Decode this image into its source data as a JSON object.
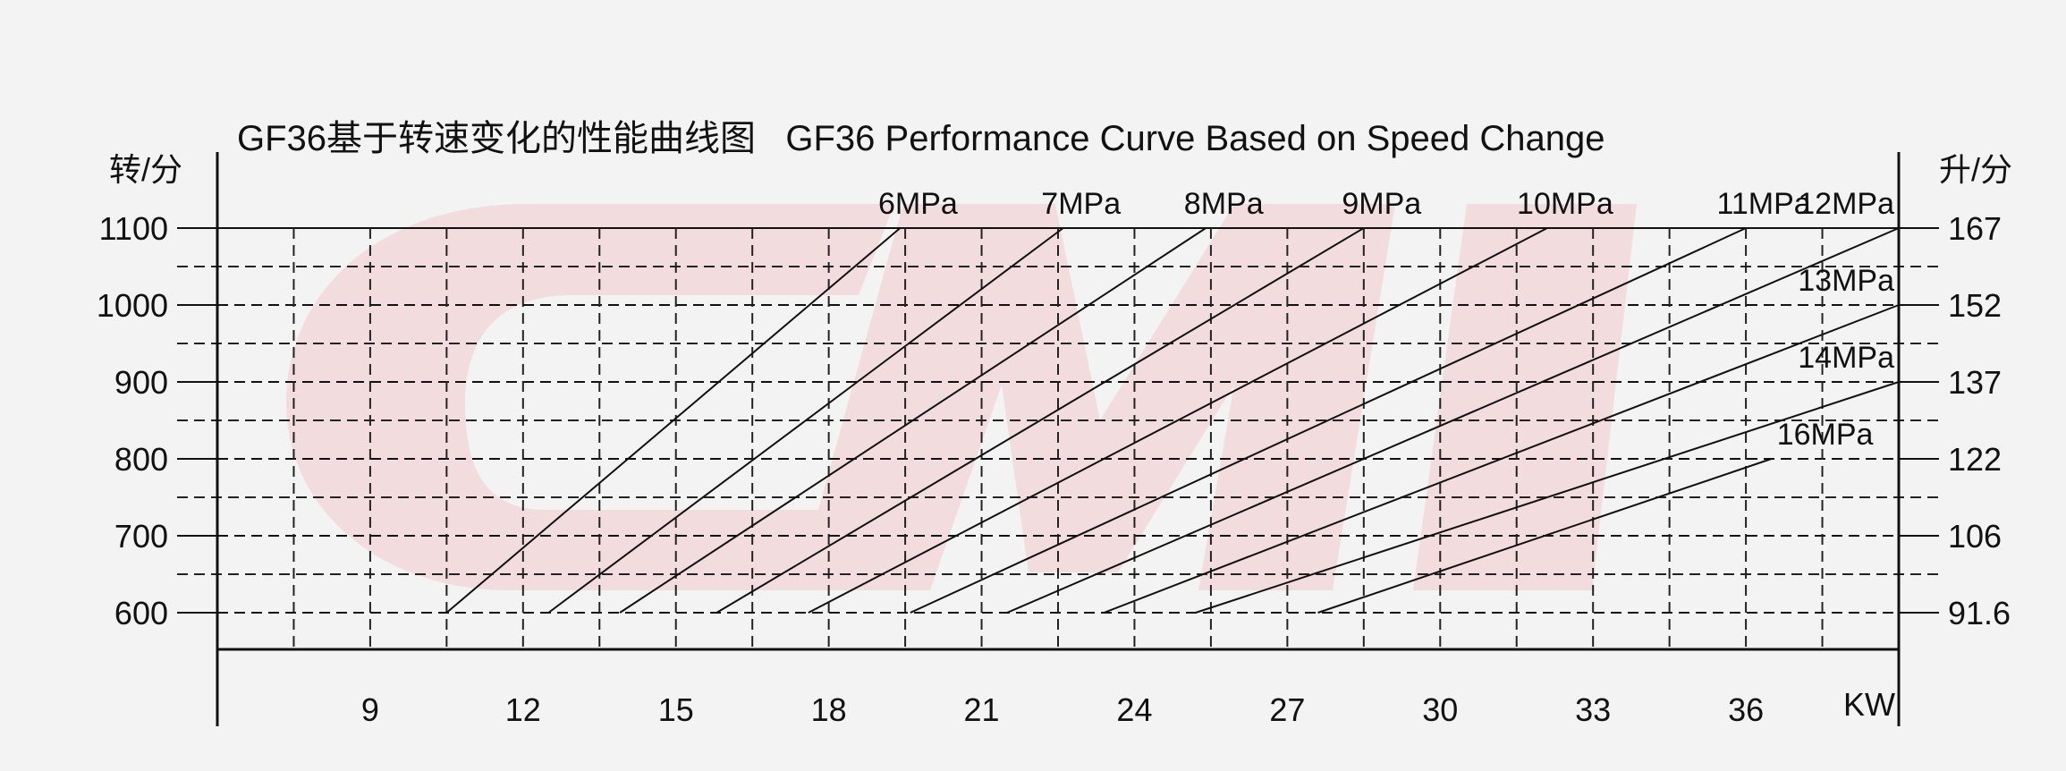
{
  "chart_data": {
    "type": "line",
    "title": "GF36基于转速变化的性能曲线图   GF36 Performance Curve Based on Speed Change",
    "ylabel": "转/分",
    "y2label": "升/分",
    "xlabel": "KW",
    "xlim": [
      6,
      39
    ],
    "ylim": [
      550,
      1100
    ],
    "x_ticks": [
      "9",
      "12",
      "15",
      "18",
      "21",
      "24",
      "27",
      "30",
      "33",
      "36"
    ],
    "y_ticks": [
      "1100",
      "1000",
      "900",
      "800",
      "700",
      "600"
    ],
    "y2_ticks": [
      "167",
      "152",
      "137",
      "122",
      "106",
      "91.6"
    ],
    "grid": "dashed",
    "background_watermark": "CMI",
    "series": [
      {
        "name": "6MPa",
        "points": [
          [
            10.5,
            600
          ],
          [
            19.4,
            1100
          ]
        ]
      },
      {
        "name": "7MPa",
        "points": [
          [
            12.5,
            600
          ],
          [
            22.6,
            1100
          ]
        ]
      },
      {
        "name": "8MPa",
        "points": [
          [
            13.9,
            600
          ],
          [
            25.4,
            1100
          ]
        ]
      },
      {
        "name": "9MPa",
        "points": [
          [
            15.8,
            600
          ],
          [
            28.5,
            1100
          ]
        ]
      },
      {
        "name": "10MPa",
        "points": [
          [
            17.6,
            600
          ],
          [
            32.1,
            1100
          ]
        ]
      },
      {
        "name": "11MPa",
        "points": [
          [
            19.6,
            600
          ],
          [
            36.0,
            1100
          ]
        ]
      },
      {
        "name": "12MPa",
        "points": [
          [
            21.5,
            600
          ],
          [
            39.0,
            1100
          ]
        ]
      },
      {
        "name": "13MPa",
        "points": [
          [
            23.4,
            600
          ],
          [
            39.0,
            1000
          ]
        ]
      },
      {
        "name": "14MPa",
        "points": [
          [
            25.2,
            600
          ],
          [
            39.0,
            900
          ]
        ]
      },
      {
        "name": "16MPa",
        "points": [
          [
            27.6,
            600
          ],
          [
            36.5,
            800
          ]
        ]
      }
    ]
  }
}
